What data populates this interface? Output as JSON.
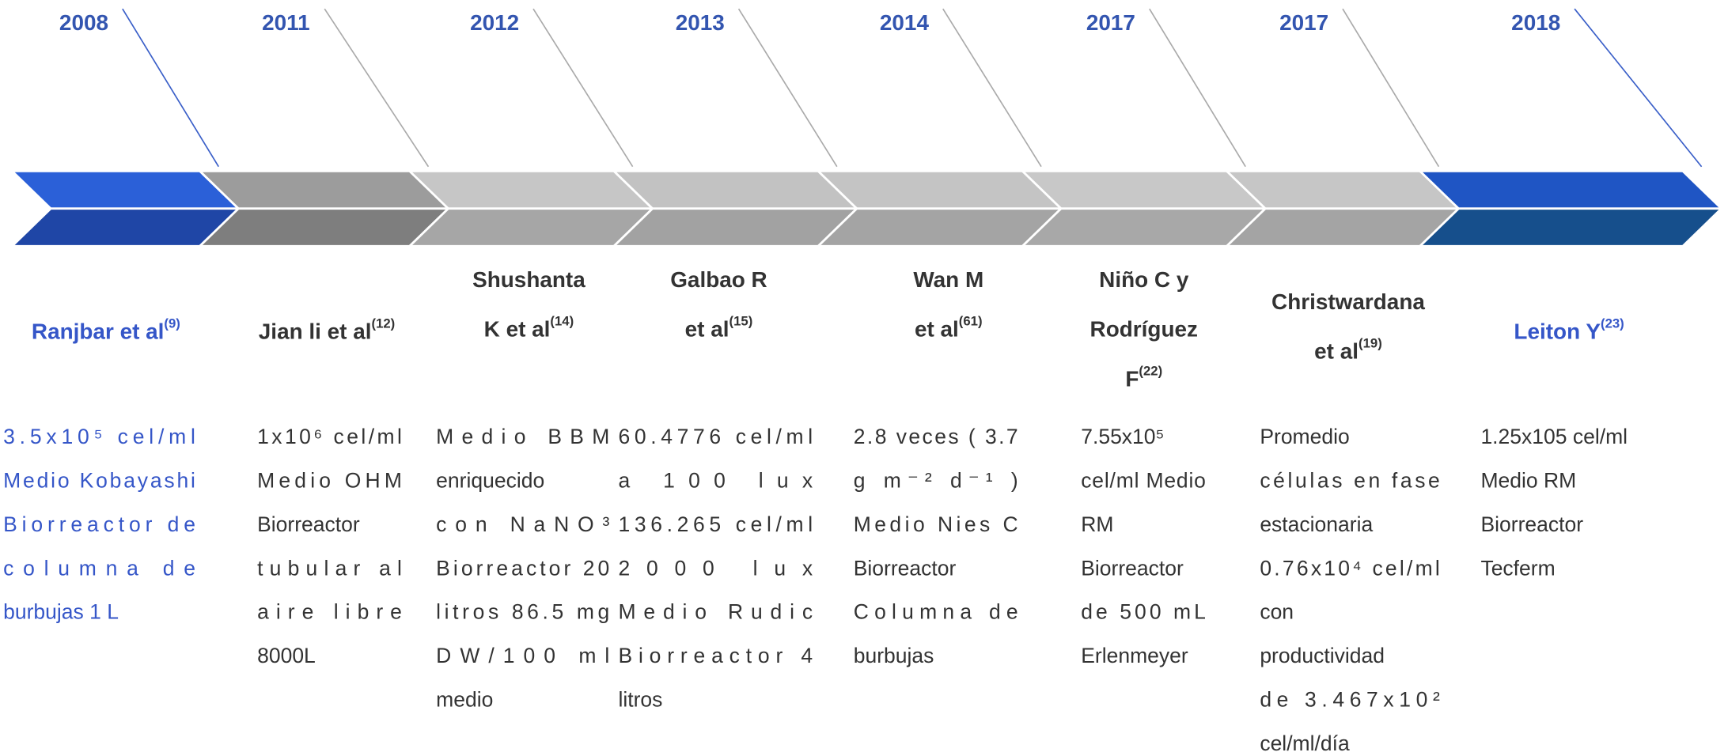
{
  "timeline": [
    {
      "year": "2008",
      "author": [
        "Ranjbar et al"
      ],
      "ref": "(9)",
      "details": [
        "3.5x10⁵ cel/ml",
        "Medio Kobayashi",
        "Biorreactor de",
        "columna de",
        "burbujas 1 L"
      ]
    },
    {
      "year": "2011",
      "author": [
        "Jian li et al"
      ],
      "ref": "(12)",
      "details": [
        "1x10⁶ cel/ml",
        "Medio OHM",
        "Biorreactor",
        "tubular al",
        "aire libre",
        "8000L"
      ]
    },
    {
      "year": "2012",
      "author": [
        "Shushanta",
        "K et al"
      ],
      "ref": "(14)",
      "details": [
        "Medio BBM",
        "enriquecido",
        "con NaNO³",
        "Biorreactor 20",
        "litros 86.5 mg",
        "DW/100 ml",
        "medio"
      ]
    },
    {
      "year": "2013",
      "author": [
        "Galbao R",
        "et al"
      ],
      "ref": "(15)",
      "details": [
        "60.4776 cel/ml",
        "a 100 lux",
        "136.265 cel/ml",
        "2000 lux",
        "Medio Rudic",
        "Biorreactor 4",
        "litros"
      ]
    },
    {
      "year": "2014",
      "author": [
        "Wan M",
        "et al"
      ],
      "ref": "(61)",
      "details": [
        "2.8 veces ( 3.7",
        "g m⁻² d⁻¹ )",
        "Medio Nies C",
        "Biorreactor",
        "Columna de",
        "burbujas"
      ]
    },
    {
      "year": "2017",
      "author": [
        "Niño C y",
        "Rodríguez",
        "F"
      ],
      "ref": "(22)",
      "details": [
        "7.55x10⁵",
        "cel/ml Medio",
        "RM",
        "Biorreactor",
        "de 500 mL",
        "Erlenmeyer"
      ]
    },
    {
      "year": "2017",
      "author": [
        "Christwardana",
        "et al"
      ],
      "ref": "(19)",
      "details": [
        "Promedio",
        "células en fase",
        "estacionaria",
        "0.76x10⁴ cel/ml",
        "con",
        "productividad",
        "de 3.467x10²",
        "cel/ml/día"
      ]
    },
    {
      "year": "2018",
      "author": [
        "Leiton Y"
      ],
      "ref": "(23)",
      "details": [
        "1.25x105 cel/ml",
        "Medio RM",
        "Biorreactor",
        "Tecferm"
      ]
    }
  ]
}
